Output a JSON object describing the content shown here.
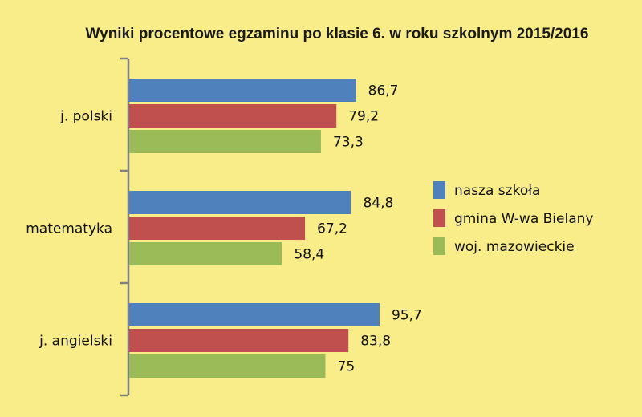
{
  "chart_data": {
    "type": "bar",
    "orientation": "horizontal",
    "title": "Wyniki procentowe egzaminu po klasie 6. w roku szkolnym 2015/2016",
    "categories": [
      "j. polski",
      "matematyka",
      "j. angielski"
    ],
    "series": [
      {
        "name": "nasza szkoła",
        "color": "#4f81bd",
        "values": [
          86.7,
          84.8,
          95.7
        ],
        "labels": [
          "86,7",
          "84,8",
          "95,7"
        ]
      },
      {
        "name": "gmina W-wa Bielany",
        "color": "#c0504d",
        "values": [
          79.2,
          67.2,
          83.8
        ],
        "labels": [
          "79,2",
          "67,2",
          "83,8"
        ]
      },
      {
        "name": "woj. mazowieckie",
        "color": "#9bbb59",
        "values": [
          73.3,
          58.4,
          75
        ],
        "labels": [
          "73,3",
          "58,4",
          "75"
        ]
      }
    ],
    "xlim": [
      0,
      100
    ],
    "legend_position": "right",
    "grid": false
  },
  "colors": {
    "background": "#f8ed88",
    "axis": "#7f7f7f"
  }
}
